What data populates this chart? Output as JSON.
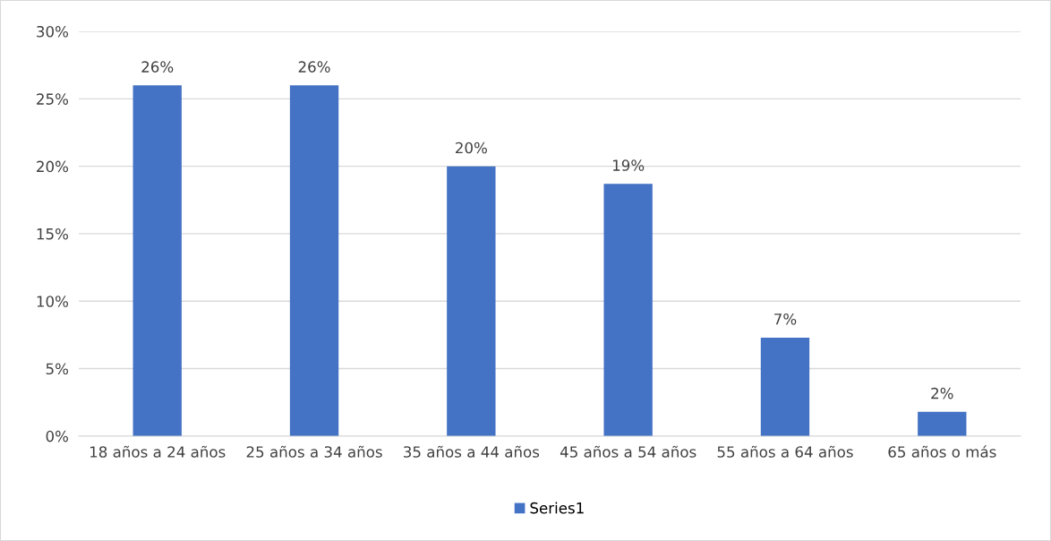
{
  "chart_data": {
    "type": "bar",
    "categories": [
      "18 años a 24 años",
      "25 años a 34 años",
      "35 años a 44 años",
      "45 años a 54 años",
      "55 años a 64 años",
      "65 años o más"
    ],
    "series": [
      {
        "name": "Series1",
        "color": "#4472c4",
        "values": [
          26,
          26,
          20,
          18.7,
          7.3,
          1.8
        ],
        "value_labels": [
          "26%",
          "26%",
          "20%",
          "19%",
          "7%",
          "2%"
        ]
      }
    ],
    "ylim": [
      0,
      30
    ],
    "yticks": [
      {
        "value": 0,
        "label": "0%"
      },
      {
        "value": 5,
        "label": "5%"
      },
      {
        "value": 10,
        "label": "10%"
      },
      {
        "value": 15,
        "label": "15%"
      },
      {
        "value": 20,
        "label": "20%"
      },
      {
        "value": 25,
        "label": "25%"
      },
      {
        "value": 30,
        "label": "30%"
      }
    ],
    "grid": "y",
    "legend": "bottom"
  }
}
